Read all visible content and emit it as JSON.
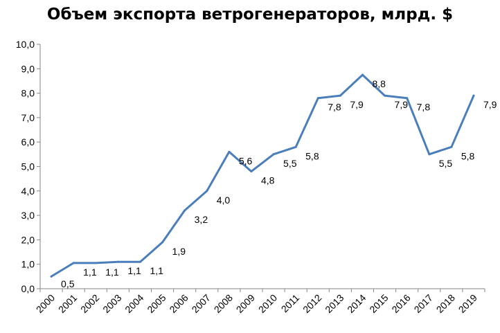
{
  "chart_data": {
    "type": "line",
    "title": "Объем экспорта ветрогенераторов, млрд. $",
    "xlabel": "",
    "ylabel": "",
    "ylim": [
      0,
      10
    ],
    "ytick_step": 1,
    "grid": false,
    "legend": "none",
    "line_color": "#4a7ebb",
    "categories": [
      "2000",
      "2001",
      "2002",
      "2003",
      "2004",
      "2005",
      "2006",
      "2007",
      "2008",
      "2009",
      "2010",
      "2011",
      "2012",
      "2013",
      "2014",
      "2015",
      "2016",
      "2017",
      "2018",
      "2019"
    ],
    "series": [
      {
        "values": [
          0.5,
          1.05,
          1.05,
          1.1,
          1.1,
          1.9,
          3.2,
          4.0,
          5.6,
          4.8,
          5.5,
          5.8,
          7.8,
          7.9,
          8.75,
          7.9,
          7.8,
          5.5,
          5.8,
          7.9
        ],
        "labels": [
          "0,5",
          "1,1",
          "1,1",
          "1,1",
          "1,1",
          "1,9",
          "3,2",
          "4,0",
          "5,6",
          "4,8",
          "5,5",
          "5,8",
          "7,8",
          "7,9",
          "8,8",
          "7,9",
          "7,8",
          "5,5",
          "5,8",
          "7,9"
        ]
      }
    ],
    "ytick_labels": [
      "0,0",
      "1,0",
      "2,0",
      "3,0",
      "4,0",
      "5,0",
      "6,0",
      "7,0",
      "8,0",
      "9,0",
      "10,0"
    ]
  }
}
